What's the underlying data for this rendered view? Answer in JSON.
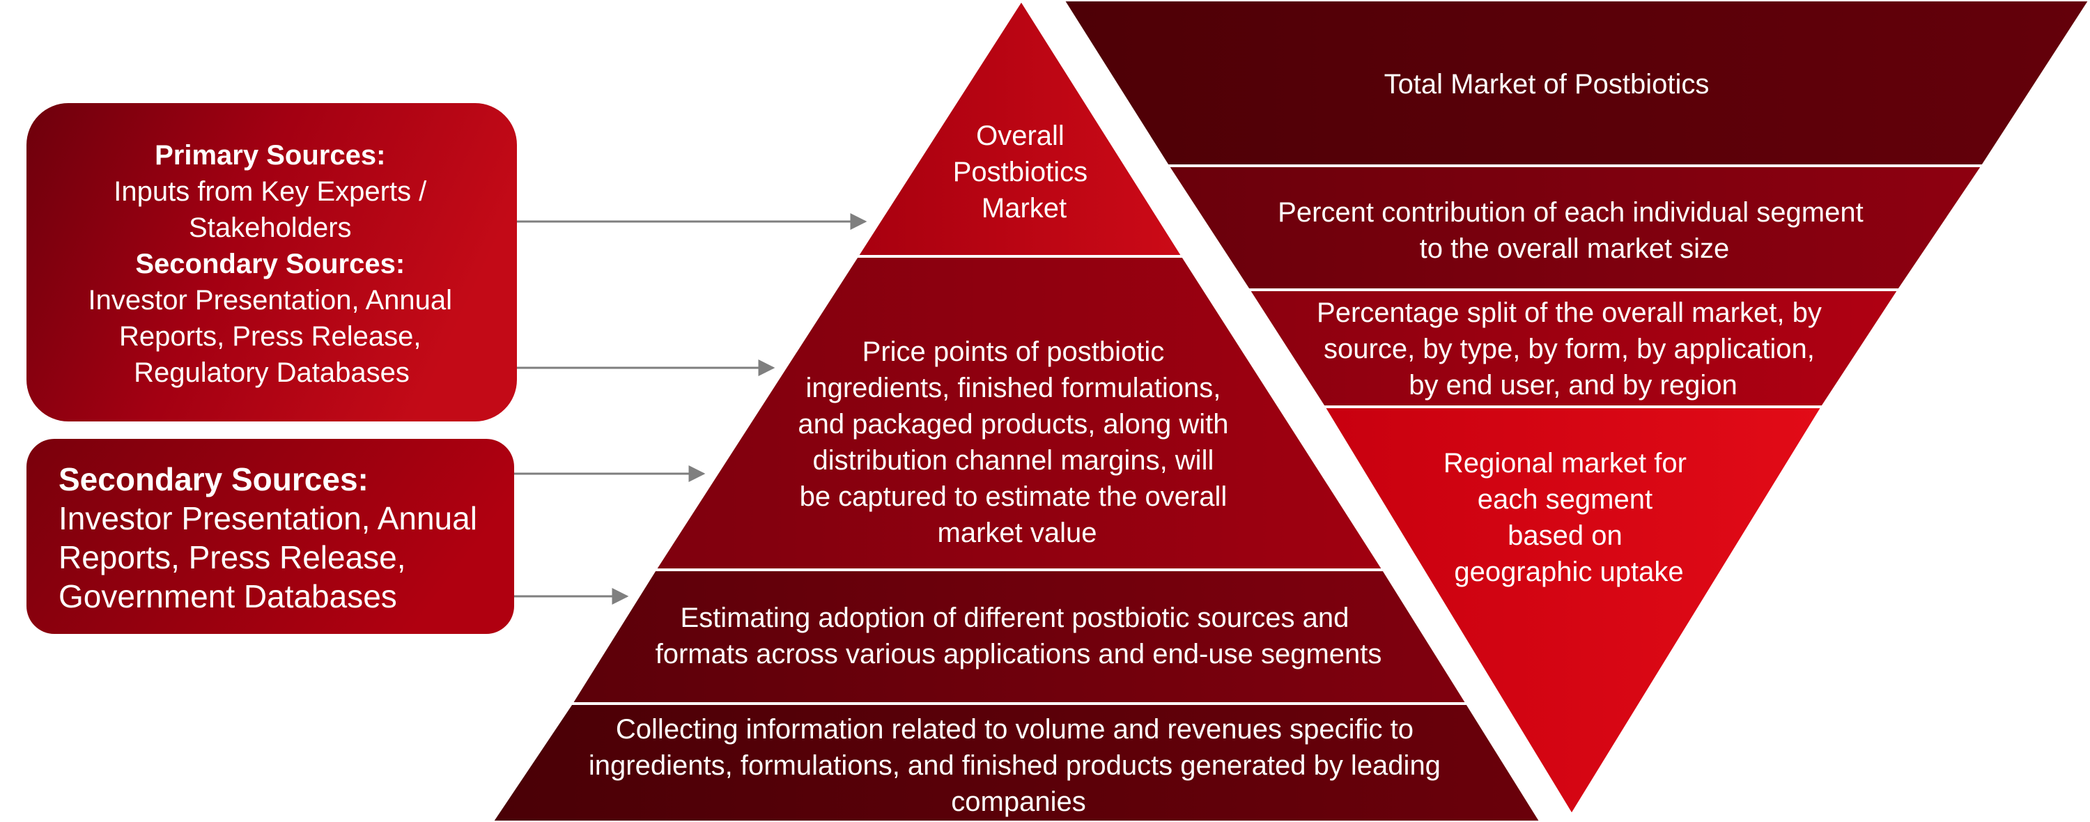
{
  "colors": {
    "dark_red": "#5a0008",
    "mid_red": "#8e0012",
    "bright_red": "#c4000f",
    "vivid_red": "#e00b16",
    "arrow": "#7f7f7f",
    "text": "#ffffff"
  },
  "source_boxes": [
    {
      "lines": [
        {
          "text": "Primary Sources:",
          "bold": true
        },
        {
          "text": "Inputs from Key Experts /",
          "bold": false
        },
        {
          "text": "Stakeholders",
          "bold": false
        },
        {
          "text": "Secondary Sources:",
          "bold": true
        },
        {
          "text": "Investor Presentation, Annual",
          "bold": false
        },
        {
          "text": "Reports, Press Release,",
          "bold": false
        },
        {
          "text": "Regulatory Databases",
          "bold": false
        }
      ]
    },
    {
      "lines": [
        {
          "text": "Secondary Sources:",
          "bold": true
        },
        {
          "text": "Investor Presentation, Annual",
          "bold": false
        },
        {
          "text": "Reports, Press Release,",
          "bold": false
        },
        {
          "text": "Government Databases",
          "bold": false
        }
      ]
    }
  ],
  "pyramid": [
    {
      "lines": [
        "Overall",
        "Postbiotics",
        "Market"
      ]
    },
    {
      "lines": [
        "Price points of postbiotic",
        "ingredients, finished formulations,",
        "and packaged products, along with",
        "distribution channel margins, will",
        "be captured to estimate the overall",
        "market value"
      ]
    },
    {
      "lines": [
        "Estimating adoption of different postbiotic sources and",
        "formats across various applications and end-use segments"
      ]
    },
    {
      "lines": [
        "Collecting information related to volume and revenues specific to",
        "ingredients, formulations, and finished products generated by leading",
        "companies"
      ]
    }
  ],
  "inverted_pyramid": [
    {
      "lines": [
        "Total Market of Postbiotics"
      ]
    },
    {
      "lines": [
        "Percent contribution of each individual segment",
        "to the overall market size"
      ]
    },
    {
      "lines": [
        "Percentage split of the overall market, by",
        "source, by type, by form, by application,",
        "by end user, and by region"
      ]
    },
    {
      "lines": [
        "Regional market for",
        "each segment",
        "based on",
        "geographic uptake"
      ]
    }
  ]
}
